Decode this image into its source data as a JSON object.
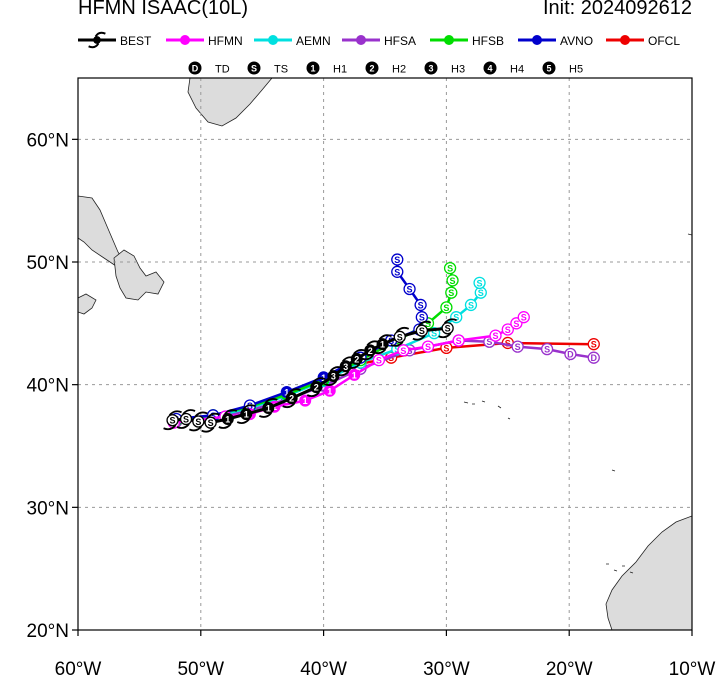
{
  "header": {
    "title": "HFMN ISAAC(10L)",
    "init": "Init: 2024092612"
  },
  "legend": [
    {
      "label": "BEST",
      "color": "#000000",
      "icon": "hurricane-icon"
    },
    {
      "label": "HFMN",
      "color": "#ff00ff"
    },
    {
      "label": "AEMN",
      "color": "#00e0e0"
    },
    {
      "label": "HFSA",
      "color": "#9932cc"
    },
    {
      "label": "HFSB",
      "color": "#00dd00"
    },
    {
      "label": "AVNO",
      "color": "#0000cc"
    },
    {
      "label": "OFCL",
      "color": "#ee0000"
    }
  ],
  "intensity_legend": [
    {
      "symbol": "D",
      "label": "TD"
    },
    {
      "symbol": "S",
      "label": "TS"
    },
    {
      "symbol": "1",
      "label": "H1"
    },
    {
      "symbol": "2",
      "label": "H2"
    },
    {
      "symbol": "3",
      "label": "H3"
    },
    {
      "symbol": "4",
      "label": "H4"
    },
    {
      "symbol": "5",
      "label": "H5"
    }
  ],
  "axes": {
    "lon_labels": [
      "60°W",
      "50°W",
      "40°W",
      "30°W",
      "20°W",
      "10°W"
    ],
    "lat_labels": [
      "20°N",
      "30°N",
      "40°N",
      "50°N",
      "60°N"
    ],
    "lon_range": [
      -60,
      -10
    ],
    "lat_range": [
      20,
      65
    ],
    "grid": true
  },
  "chart_data": {
    "type": "line",
    "x_name": "longitude",
    "y_name": "latitude",
    "series": [
      {
        "name": "OFCL",
        "color": "#ee0000",
        "points": [
          [
            -52.2,
            37.1
          ],
          [
            -49,
            37.4
          ],
          [
            -46,
            38.2
          ],
          [
            -43,
            39.2
          ],
          [
            -40,
            40.4
          ],
          [
            -37,
            41.7
          ],
          [
            -34.5,
            42.2
          ],
          [
            -30,
            43
          ],
          [
            -25,
            43.4
          ],
          [
            -18,
            43.3
          ]
        ],
        "labels": [
          "S",
          "S",
          "S",
          "1",
          "1",
          "S",
          "S",
          "S",
          "S",
          "S"
        ]
      },
      {
        "name": "HFSA",
        "color": "#9932cc",
        "points": [
          [
            -52,
            37
          ],
          [
            -49,
            37.3
          ],
          [
            -46,
            37.9
          ],
          [
            -43,
            38.8
          ],
          [
            -40,
            39.9
          ],
          [
            -37,
            41.3
          ],
          [
            -33,
            42.8
          ],
          [
            -29,
            43.6
          ],
          [
            -26.5,
            43.5
          ],
          [
            -24.2,
            43.1
          ],
          [
            -21.8,
            42.9
          ],
          [
            -19.9,
            42.5
          ],
          [
            -18,
            42.2
          ]
        ],
        "labels": [
          "S",
          "S",
          "S",
          "1",
          "1",
          "S",
          "S",
          "S",
          "S",
          "S",
          "S",
          "D",
          "D"
        ]
      },
      {
        "name": "AEMN",
        "color": "#00e0e0",
        "points": [
          [
            -52,
            37.1
          ],
          [
            -49,
            37.4
          ],
          [
            -46,
            38.1
          ],
          [
            -43,
            39.1
          ],
          [
            -40,
            40.3
          ],
          [
            -37,
            41.8
          ],
          [
            -34,
            42.9
          ],
          [
            -31,
            44.2
          ],
          [
            -29.2,
            45.5
          ],
          [
            -28,
            46.5
          ],
          [
            -27.2,
            47.5
          ],
          [
            -27.3,
            48.3
          ]
        ],
        "labels": [
          "S",
          "S",
          "S",
          "1",
          "1",
          "S",
          "S",
          "S",
          "S",
          "S",
          "S",
          "S"
        ]
      },
      {
        "name": "HFSB",
        "color": "#00dd00",
        "points": [
          [
            -52,
            37.1
          ],
          [
            -49,
            37.5
          ],
          [
            -46,
            38.2
          ],
          [
            -43,
            39.2
          ],
          [
            -40,
            40.4
          ],
          [
            -37,
            42
          ],
          [
            -34,
            43.6
          ],
          [
            -31.5,
            45
          ],
          [
            -30,
            46.3
          ],
          [
            -29.6,
            47.5
          ],
          [
            -29.5,
            48.5
          ],
          [
            -29.7,
            49.5
          ]
        ],
        "labels": [
          "S",
          "S",
          "S",
          "1",
          "1",
          "S",
          "S",
          "S",
          "S",
          "S",
          "S",
          "S"
        ]
      },
      {
        "name": "AVNO",
        "color": "#0000cc",
        "points": [
          [
            -52,
            37.2
          ],
          [
            -49,
            37.5
          ],
          [
            -46,
            38.3
          ],
          [
            -43,
            39.4
          ],
          [
            -40,
            40.6
          ],
          [
            -37,
            42.2
          ],
          [
            -34.5,
            43.6
          ],
          [
            -32.2,
            44.5
          ],
          [
            -32,
            45.5
          ],
          [
            -32.1,
            46.5
          ],
          [
            -33,
            47.8
          ],
          [
            -34,
            49.2
          ],
          [
            -34,
            50.2
          ]
        ],
        "labels": [
          "S",
          "S",
          "S",
          "1",
          "1",
          "S",
          "S",
          "S",
          "S",
          "S",
          "S",
          "S",
          "S"
        ]
      },
      {
        "name": "HFMN",
        "color": "#ff00ff",
        "points": [
          [
            -52.2,
            36.9
          ],
          [
            -48,
            37.4
          ],
          [
            -46,
            37.6
          ],
          [
            -44,
            38.2
          ],
          [
            -41.5,
            38.7
          ],
          [
            -39.5,
            39.5
          ],
          [
            -37.5,
            40.8
          ],
          [
            -35.5,
            42
          ],
          [
            -33.5,
            42.8
          ],
          [
            -31.5,
            43.1
          ],
          [
            -29,
            43.6
          ],
          [
            -26,
            44
          ],
          [
            -25,
            44.5
          ],
          [
            -24.3,
            45
          ],
          [
            -23.7,
            45.5
          ]
        ],
        "labels": [
          "S",
          "S",
          "1",
          "1",
          "1",
          "1",
          "1",
          "S",
          "S",
          "S",
          "S",
          "S",
          "S",
          "S",
          "S"
        ]
      },
      {
        "name": "BEST",
        "color": "#000000",
        "points": [
          [
            -52.3,
            37.1
          ],
          [
            -51.2,
            37.2
          ],
          [
            -50.2,
            37
          ],
          [
            -49.2,
            36.9
          ],
          [
            -47.8,
            37.2
          ],
          [
            -46.3,
            37.6
          ],
          [
            -44.5,
            38.1
          ],
          [
            -42.6,
            38.9
          ],
          [
            -40.6,
            39.8
          ],
          [
            -39.2,
            40.7
          ],
          [
            -38.2,
            41.5
          ],
          [
            -37.3,
            42.1
          ],
          [
            -36.2,
            42.8
          ],
          [
            -35.2,
            43.3
          ],
          [
            -33.8,
            43.9
          ],
          [
            -32,
            44.4
          ],
          [
            -29.9,
            44.6
          ]
        ],
        "labels": [
          "S",
          "S",
          "S",
          "S",
          "1",
          "1",
          "1",
          "2",
          "2",
          "3",
          "3",
          "2",
          "2",
          "1",
          "S",
          "S",
          "S"
        ]
      }
    ]
  }
}
